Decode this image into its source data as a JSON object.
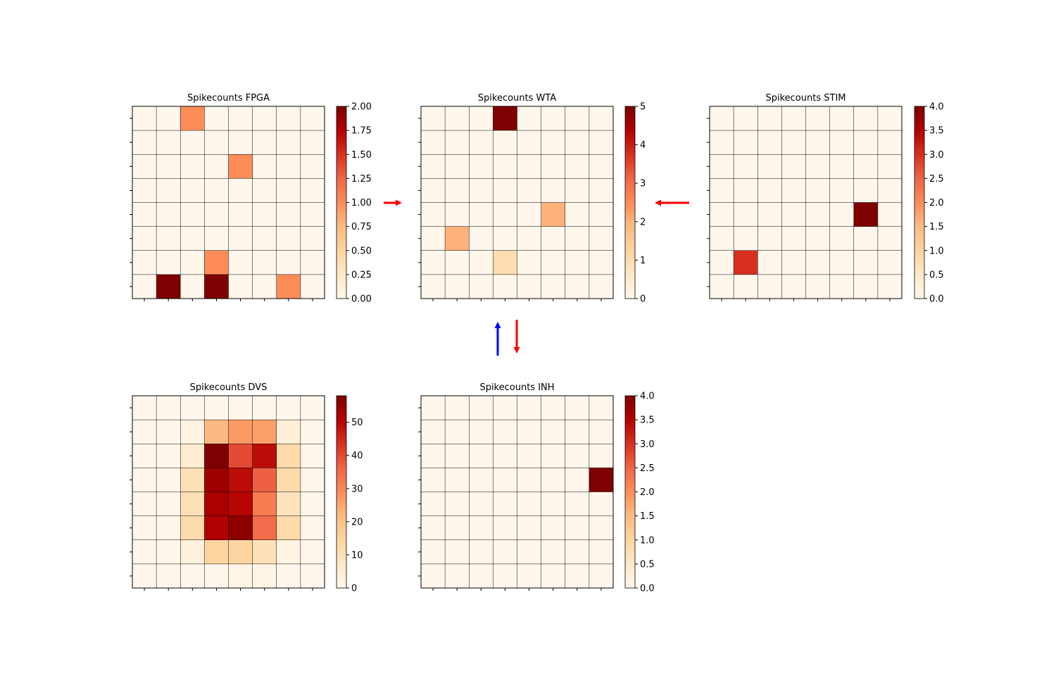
{
  "colormap": "OrRd",
  "colormap_stops": [
    "#fff7ec",
    "#fee8c8",
    "#fdd49e",
    "#fdbb84",
    "#fc8d59",
    "#ef6548",
    "#d7301f",
    "#b30000",
    "#7f0000"
  ],
  "arrow_colors": {
    "red": "#ff0000",
    "blue": "#0000ff"
  },
  "chart_data": [
    {
      "id": "fpga",
      "type": "heatmap",
      "title": "Spikecounts FPGA",
      "vmin": 0,
      "vmax": 2,
      "colorbar_ticks": [
        "0.00",
        "0.25",
        "0.50",
        "0.75",
        "1.00",
        "1.25",
        "1.50",
        "1.75",
        "2.00"
      ],
      "values": [
        [
          0,
          0,
          1,
          0,
          0,
          0,
          0,
          0
        ],
        [
          0,
          0,
          0,
          0,
          0,
          0,
          0,
          0
        ],
        [
          0,
          0,
          0,
          0,
          1,
          0,
          0,
          0
        ],
        [
          0,
          0,
          0,
          0,
          0,
          0,
          0,
          0
        ],
        [
          0,
          0,
          0,
          0,
          0,
          0,
          0,
          0
        ],
        [
          0,
          0,
          0,
          0,
          0,
          0,
          0,
          0
        ],
        [
          0,
          0,
          0,
          1,
          0,
          0,
          0,
          0
        ],
        [
          0,
          2,
          0,
          2,
          0,
          0,
          1,
          0
        ]
      ]
    },
    {
      "id": "wta",
      "type": "heatmap",
      "title": "Spikecounts WTA",
      "vmin": 0,
      "vmax": 5,
      "colorbar_ticks": [
        "0",
        "1",
        "2",
        "3",
        "4",
        "5"
      ],
      "values": [
        [
          0,
          0,
          0,
          5,
          0,
          0,
          0,
          0
        ],
        [
          0,
          0,
          0,
          0,
          0,
          0,
          0,
          0
        ],
        [
          0,
          0,
          0,
          0,
          0,
          0,
          0,
          0
        ],
        [
          0,
          0,
          0,
          0,
          0,
          0,
          0,
          0
        ],
        [
          0,
          0,
          0,
          0,
          0,
          2,
          0,
          0
        ],
        [
          0,
          2,
          0,
          0,
          0,
          0,
          0,
          0
        ],
        [
          0,
          0,
          0,
          1,
          0,
          0,
          0,
          0
        ],
        [
          0,
          0,
          0,
          0,
          0,
          0,
          0,
          0
        ]
      ]
    },
    {
      "id": "stim",
      "type": "heatmap",
      "title": "Spikecounts STIM",
      "vmin": 0,
      "vmax": 4,
      "colorbar_ticks": [
        "0.0",
        "0.5",
        "1.0",
        "1.5",
        "2.0",
        "2.5",
        "3.0",
        "3.5",
        "4.0"
      ],
      "values": [
        [
          0,
          0,
          0,
          0,
          0,
          0,
          0,
          0
        ],
        [
          0,
          0,
          0,
          0,
          0,
          0,
          0,
          0
        ],
        [
          0,
          0,
          0,
          0,
          0,
          0,
          0,
          0
        ],
        [
          0,
          0,
          0,
          0,
          0,
          0,
          0,
          0
        ],
        [
          0,
          0,
          0,
          0,
          0,
          0,
          4,
          0
        ],
        [
          0,
          0,
          0,
          0,
          0,
          0,
          0,
          0
        ],
        [
          0,
          3,
          0,
          0,
          0,
          0,
          0,
          0
        ],
        [
          0,
          0,
          0,
          0,
          0,
          0,
          0,
          0
        ]
      ]
    },
    {
      "id": "dvs",
      "type": "heatmap",
      "title": "Spikecounts DVS",
      "vmin": 0,
      "vmax": 58,
      "colorbar_ticks": [
        "0",
        "10",
        "20",
        "30",
        "40",
        "50"
      ],
      "colorbar_tick_values": [
        0,
        10,
        20,
        30,
        40,
        50
      ],
      "values": [
        [
          0,
          0,
          0,
          0,
          0,
          0,
          0,
          0
        ],
        [
          0,
          0,
          2,
          22,
          27,
          26,
          4,
          0
        ],
        [
          0,
          0,
          5,
          58,
          40,
          49,
          12,
          0
        ],
        [
          0,
          0,
          10,
          54,
          49,
          37,
          12,
          0
        ],
        [
          0,
          0,
          10,
          52,
          50,
          32,
          9,
          0
        ],
        [
          0,
          0,
          12,
          51,
          56,
          35,
          12,
          0
        ],
        [
          0,
          0,
          3,
          14,
          14,
          10,
          2,
          0
        ],
        [
          0,
          0,
          0,
          0,
          1,
          1,
          0,
          0
        ]
      ]
    },
    {
      "id": "inh",
      "type": "heatmap",
      "title": "Spikecounts INH",
      "vmin": 0,
      "vmax": 4,
      "colorbar_ticks": [
        "0.0",
        "0.5",
        "1.0",
        "1.5",
        "2.0",
        "2.5",
        "3.0",
        "3.5",
        "4.0"
      ],
      "values": [
        [
          0,
          0,
          0,
          0,
          0,
          0,
          0,
          0
        ],
        [
          0,
          0,
          0,
          0,
          0,
          0,
          0,
          0
        ],
        [
          0,
          0,
          0,
          0,
          0,
          0,
          0,
          0
        ],
        [
          0,
          0,
          0,
          0,
          0,
          0,
          0,
          4
        ],
        [
          0,
          0,
          0,
          0,
          0,
          0,
          0,
          0
        ],
        [
          0,
          0,
          0,
          0,
          0,
          0,
          0,
          0
        ],
        [
          0,
          0,
          0,
          0,
          0,
          0,
          0,
          0
        ],
        [
          0,
          0,
          0,
          0,
          0,
          0,
          0,
          0
        ]
      ]
    }
  ]
}
